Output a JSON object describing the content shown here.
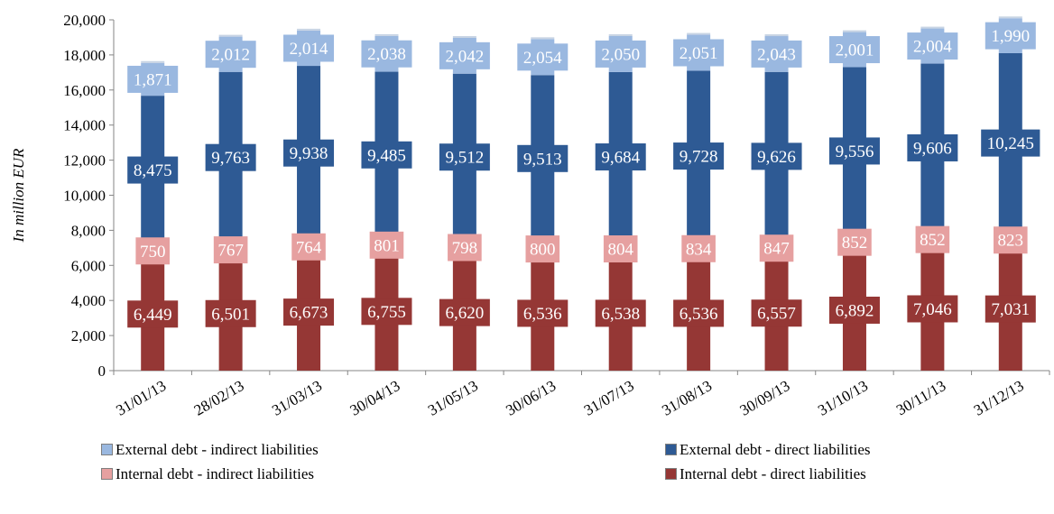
{
  "chart_data": {
    "type": "bar",
    "stacked": true,
    "ylabel": "In million EUR",
    "xlabel": "",
    "ylim": [
      0,
      20000
    ],
    "yticks": [
      0,
      2000,
      4000,
      6000,
      8000,
      10000,
      12000,
      14000,
      16000,
      18000,
      20000
    ],
    "ytick_labels": [
      "0",
      "2,000",
      "4,000",
      "6,000",
      "8,000",
      "10,000",
      "12,000",
      "14,000",
      "16,000",
      "18,000",
      "20,000"
    ],
    "categories": [
      "31/01/13",
      "28/02/13",
      "31/03/13",
      "30/04/13",
      "31/05/13",
      "30/06/13",
      "31/07/13",
      "31/08/13",
      "30/09/13",
      "31/10/13",
      "30/11/13",
      "31/12/13"
    ],
    "series": [
      {
        "name": "Internal debt - direct liabilities",
        "color": "#953735",
        "values": [
          6449,
          6501,
          6673,
          6755,
          6620,
          6536,
          6538,
          6536,
          6557,
          6892,
          7046,
          7031
        ],
        "labels": [
          "6,449",
          "6,501",
          "6,673",
          "6,755",
          "6,620",
          "6,536",
          "6,538",
          "6,536",
          "6,557",
          "6,892",
          "7,046",
          "7,031"
        ]
      },
      {
        "name": "Internal debt - indirect liabilities",
        "color": "#e6a0a0",
        "values": [
          750,
          767,
          764,
          801,
          798,
          800,
          804,
          834,
          847,
          852,
          852,
          823
        ],
        "labels": [
          "750",
          "767",
          "764",
          "801",
          "798",
          "800",
          "804",
          "834",
          "847",
          "852",
          "852",
          "823"
        ]
      },
      {
        "name": "External debt - direct liabilities",
        "color": "#2e5a94",
        "values": [
          8475,
          9763,
          9938,
          9485,
          9512,
          9513,
          9684,
          9728,
          9626,
          9556,
          9606,
          10245
        ],
        "labels": [
          "8,475",
          "9,763",
          "9,938",
          "9,485",
          "9,512",
          "9,513",
          "9,684",
          "9,728",
          "9,626",
          "9,556",
          "9,606",
          "10,245"
        ]
      },
      {
        "name": "External debt - indirect liabilities",
        "color": "#9ab8e0",
        "values": [
          1871,
          2012,
          2014,
          2038,
          2042,
          2054,
          2050,
          2051,
          2043,
          2001,
          2004,
          1990
        ],
        "labels": [
          "1,871",
          "2,012",
          "2,014",
          "2,038",
          "2,042",
          "2,054",
          "2,050",
          "2,051",
          "2,043",
          "2,001",
          "2,004",
          "1,990"
        ]
      }
    ],
    "legend": {
      "position": "bottom",
      "items": [
        {
          "name": "External debt - indirect liabilities",
          "color": "#9ab8e0"
        },
        {
          "name": "External debt - direct liabilities",
          "color": "#2e5a94"
        },
        {
          "name": "Internal debt - indirect liabilities",
          "color": "#e6a0a0"
        },
        {
          "name": "Internal debt - direct liabilities",
          "color": "#953735"
        }
      ]
    },
    "grid": false
  }
}
